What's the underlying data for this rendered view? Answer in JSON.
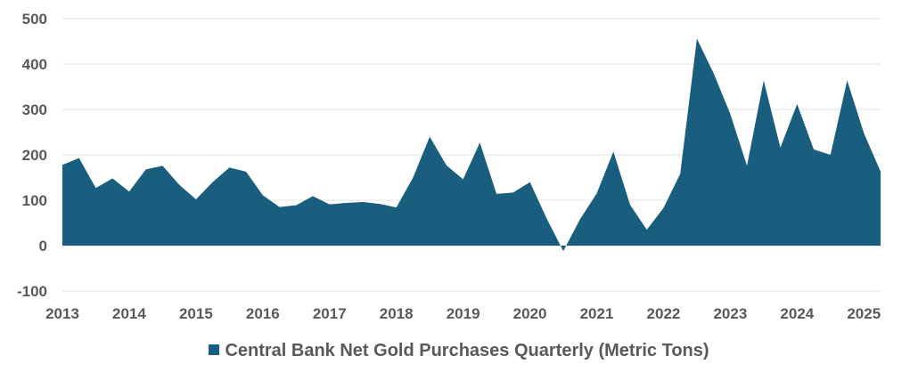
{
  "colors": {
    "area": "#195e7e",
    "grid": "#e3e3e3",
    "text": "#595959"
  },
  "chart_data": {
    "type": "area",
    "title": "",
    "xlabel": "",
    "ylabel": "",
    "ylim": [
      -100,
      500
    ],
    "yticks": [
      -100,
      0,
      100,
      200,
      300,
      400,
      500
    ],
    "xlim": [
      2013,
      2025.25
    ],
    "xticks": [
      "2013",
      "2014",
      "2015",
      "2016",
      "2017",
      "2018",
      "2019",
      "2020",
      "2021",
      "2022",
      "2023",
      "2024",
      "2025"
    ],
    "grid": true,
    "legend_position": "bottom",
    "series": [
      {
        "name": "Central Bank Net Gold Purchases Quarterly (Metric Tons)",
        "x": [
          2013.0,
          2013.25,
          2013.5,
          2013.75,
          2014.0,
          2014.25,
          2014.5,
          2014.75,
          2015.0,
          2015.25,
          2015.5,
          2015.75,
          2016.0,
          2016.25,
          2016.5,
          2016.75,
          2017.0,
          2017.25,
          2017.5,
          2017.75,
          2018.0,
          2018.25,
          2018.5,
          2018.75,
          2019.0,
          2019.25,
          2019.5,
          2019.75,
          2020.0,
          2020.25,
          2020.5,
          2020.75,
          2021.0,
          2021.25,
          2021.5,
          2021.75,
          2022.0,
          2022.25,
          2022.5,
          2022.75,
          2023.0,
          2023.25,
          2023.5,
          2023.75,
          2024.0,
          2024.25,
          2024.5,
          2024.75,
          2025.0,
          2025.25
        ],
        "values": [
          178,
          193,
          127,
          148,
          119,
          168,
          176,
          134,
          102,
          140,
          172,
          163,
          111,
          85,
          89,
          109,
          91,
          94,
          96,
          92,
          84,
          150,
          240,
          177,
          146,
          227,
          114,
          117,
          140,
          60,
          -12,
          58,
          115,
          207,
          90,
          35,
          83,
          158,
          456,
          380,
          290,
          176,
          364,
          216,
          312,
          212,
          200,
          364,
          248,
          163
        ]
      }
    ]
  }
}
